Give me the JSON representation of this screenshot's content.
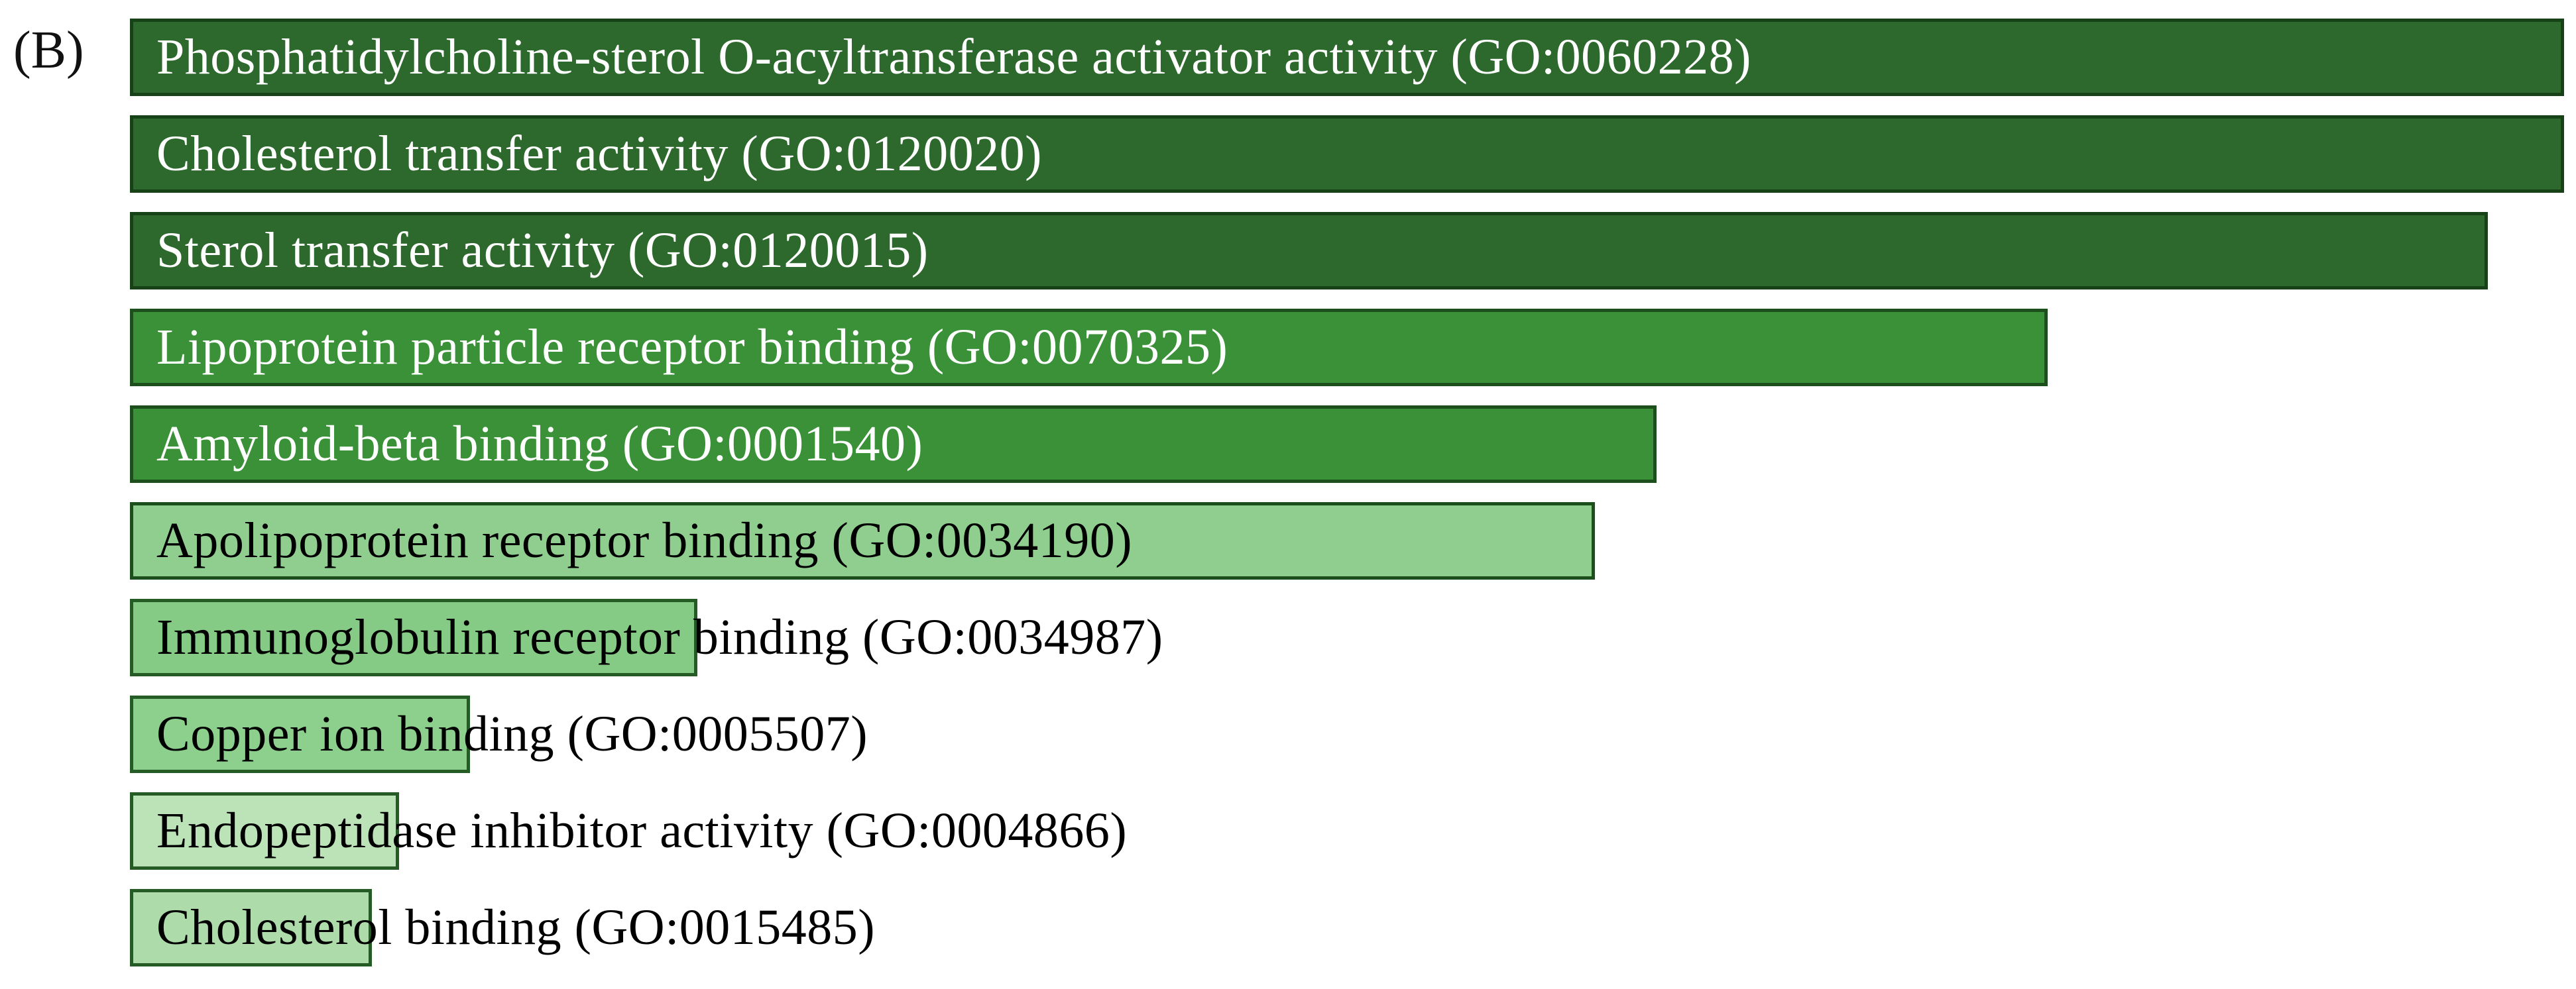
{
  "panel_label": "(B)",
  "background_color": "#ffffff",
  "palette": {
    "dark_green": "#2d682d",
    "medium_green": "#3a9138",
    "light_green": "#8cce8c",
    "pale_green": "#b2ddae",
    "dark_border": "#174217",
    "text_on_dark": "#ffffff",
    "text_on_light": "#000000"
  },
  "chart_data": {
    "type": "bar",
    "orientation": "horizontal",
    "title": "",
    "xlabel": "",
    "ylabel": "",
    "axes_shown": false,
    "value_note": "no axis shown; values are bar lengths as % of plot width, color shade encodes significance rank",
    "categories": [
      "Phosphatidylcholine-sterol O-acyltransferase activator activity (GO:0060228)",
      "Cholesterol transfer activity (GO:0120020)",
      "Sterol transfer activity (GO:0120015)",
      "Lipoprotein particle receptor binding (GO:0070325)",
      "Amyloid-beta binding (GO:0001540)",
      "Apolipoprotein receptor binding (GO:0034190)",
      "Immunoglobulin receptor binding (GO:0034987)",
      "Copper ion binding (GO:0005507)",
      "Endopeptidase inhibitor activity (GO:0004866)",
      "Cholesterol binding (GO:0015485)"
    ],
    "bars": [
      {
        "label": "Phosphatidylcholine-sterol O-acyltransferase activator activity (GO:0060228)",
        "go_id": "GO:0060228",
        "length_pct": 99.5,
        "fill": "#2d682d",
        "border": "#174217",
        "text_color": "#ffffff"
      },
      {
        "label": "Cholesterol transfer activity (GO:0120020)",
        "go_id": "GO:0120020",
        "length_pct": 99.5,
        "fill": "#2d682d",
        "border": "#174217",
        "text_color": "#ffffff"
      },
      {
        "label": "Sterol transfer activity (GO:0120015)",
        "go_id": "GO:0120015",
        "length_pct": 96.4,
        "fill": "#2d682d",
        "border": "#174217",
        "text_color": "#ffffff"
      },
      {
        "label": "Lipoprotein particle receptor binding (GO:0070325)",
        "go_id": "GO:0070325",
        "length_pct": 78.4,
        "fill": "#3a9138",
        "border": "#1d4f1d",
        "text_color": "#ffffff"
      },
      {
        "label": "Amyloid-beta binding (GO:0001540)",
        "go_id": "GO:0001540",
        "length_pct": 62.4,
        "fill": "#3a9138",
        "border": "#1d4f1d",
        "text_color": "#ffffff"
      },
      {
        "label": "Apolipoprotein receptor binding (GO:0034190)",
        "go_id": "GO:0034190",
        "length_pct": 59.9,
        "fill": "#8fce8f",
        "border": "#1d4f1d",
        "text_color": "#000000"
      },
      {
        "label": "Immunoglobulin receptor binding (GO:0034987)",
        "go_id": "GO:0034987",
        "length_pct": 23.2,
        "fill": "#85ca85",
        "border": "#255c25",
        "text_color": "#000000"
      },
      {
        "label": "Copper ion binding (GO:0005507)",
        "go_id": "GO:0005507",
        "length_pct": 13.9,
        "fill": "#8dcf8d",
        "border": "#255c25",
        "text_color": "#000000"
      },
      {
        "label": "Endopeptidase inhibitor activity (GO:0004866)",
        "go_id": "GO:0004866",
        "length_pct": 11.0,
        "fill": "#bce3b7",
        "border": "#255c25",
        "text_color": "#000000"
      },
      {
        "label": "Cholesterol binding (GO:0015485)",
        "go_id": "GO:0015485",
        "length_pct": 9.9,
        "fill": "#aedbaa",
        "border": "#255c25",
        "text_color": "#000000"
      }
    ]
  }
}
